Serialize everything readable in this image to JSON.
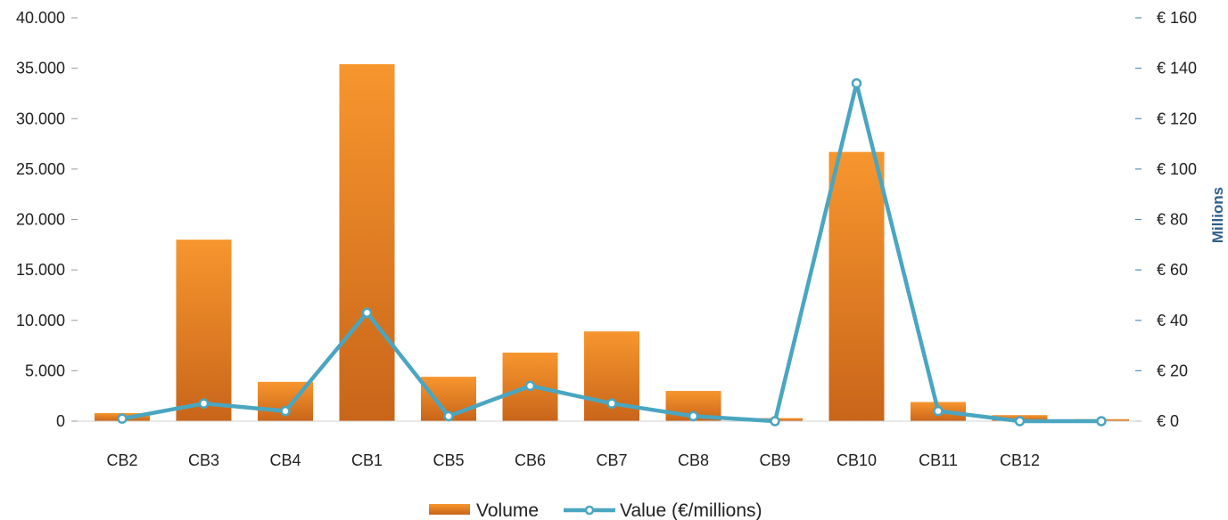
{
  "chart_data": {
    "type": "bar",
    "categories": [
      "CB2",
      "CB3",
      "CB4",
      "CB1",
      "CB5",
      "CB6",
      "CB7",
      "CB8",
      "CB9",
      "CB10",
      "CB11",
      "CB12",
      ""
    ],
    "series": [
      {
        "name": "Volume",
        "type": "bar",
        "axis": "left",
        "color": "#f0821e",
        "values": [
          800,
          18000,
          3900,
          35400,
          4400,
          6800,
          8900,
          3000,
          300,
          26700,
          1900,
          600,
          200
        ]
      },
      {
        "name": "Value (€/millions)",
        "type": "line",
        "axis": "right",
        "color": "#4aa6c0",
        "values": [
          1,
          7,
          4,
          43,
          2,
          14,
          7,
          2,
          0,
          134,
          4,
          0,
          0
        ]
      }
    ],
    "y_left": {
      "range": [
        0,
        40000
      ],
      "ticks": [
        0,
        5000,
        10000,
        15000,
        20000,
        25000,
        30000,
        35000,
        40000
      ],
      "tick_labels": [
        "0",
        "5.000",
        "10.000",
        "15.000",
        "20.000",
        "25.000",
        "30.000",
        "35.000",
        "40.000"
      ]
    },
    "y_right": {
      "range": [
        0,
        160
      ],
      "ticks": [
        0,
        20,
        40,
        60,
        80,
        100,
        120,
        140,
        160
      ],
      "tick_labels": [
        "€ 0",
        "€ 20",
        "€ 40",
        "€ 60",
        "€ 80",
        "€ 100",
        "€ 120",
        "€ 140",
        "€ 160"
      ],
      "label": "Millions"
    },
    "title": "",
    "xlabel": "",
    "grid": false,
    "legend": "bottom-center"
  }
}
